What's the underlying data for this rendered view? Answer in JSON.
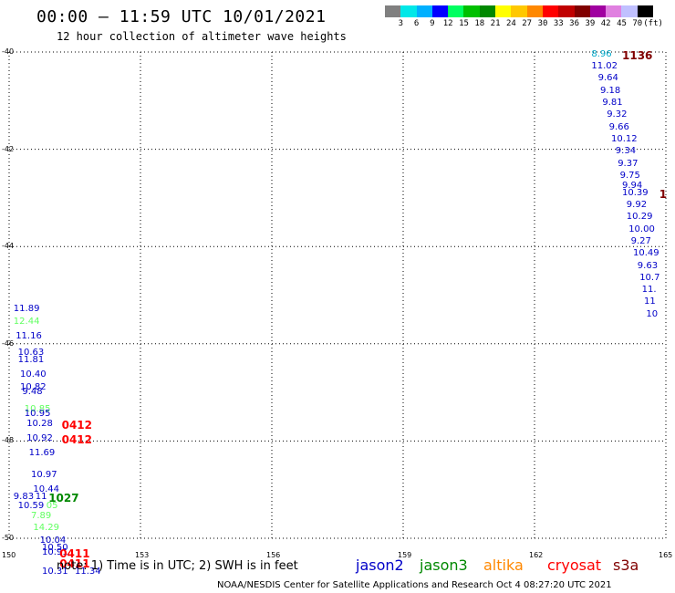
{
  "header": {
    "title": "00:00 – 11:59 UTC 10/01/2021",
    "subtitle": "12 hour collection of altimeter wave heights"
  },
  "legend": {
    "colors": [
      "#808080",
      "#00e8e8",
      "#00b0ff",
      "#0000ff",
      "#00ff60",
      "#00c000",
      "#008800",
      "#ffff00",
      "#ffc800",
      "#ff8800",
      "#ff0000",
      "#c00000",
      "#800000",
      "#a000a0",
      "#e080e0",
      "#c0c0ff",
      "#000000"
    ],
    "labels": [
      "3",
      "6",
      "9",
      "12",
      "15",
      "18",
      "21",
      "24",
      "27",
      "30",
      "33",
      "36",
      "39",
      "42",
      "45",
      "70",
      "(ft)"
    ]
  },
  "axes": {
    "lon_labels": [
      "150",
      "153",
      "156",
      "159",
      "162",
      "165"
    ],
    "lat_labels": [
      "-40",
      "-42",
      "-44",
      "-46",
      "-48",
      "-50"
    ]
  },
  "chart_data": {
    "type": "scatter",
    "xlim": [
      150,
      165
    ],
    "ylim": [
      -50,
      -40
    ],
    "grid": true,
    "points": [
      {
        "lon": 163.3,
        "lat": -40.05,
        "text": "8.96",
        "color": "#00a8c8"
      },
      {
        "lon": 164.0,
        "lat": -40.05,
        "text": "1136",
        "color": "#800000",
        "big": true
      },
      {
        "lon": 163.3,
        "lat": -40.3,
        "text": "11.02",
        "color": "#0000c8"
      },
      {
        "lon": 163.45,
        "lat": -40.55,
        "text": "9.64",
        "color": "#0000c8"
      },
      {
        "lon": 163.5,
        "lat": -40.8,
        "text": "9.18",
        "color": "#0000c8"
      },
      {
        "lon": 163.55,
        "lat": -41.05,
        "text": "9.81",
        "color": "#0000c8"
      },
      {
        "lon": 163.65,
        "lat": -41.3,
        "text": "9.32",
        "color": "#0000c8"
      },
      {
        "lon": 163.7,
        "lat": -41.55,
        "text": "9.66",
        "color": "#0000c8"
      },
      {
        "lon": 163.75,
        "lat": -41.8,
        "text": "10.12",
        "color": "#0000c8"
      },
      {
        "lon": 163.85,
        "lat": -42.05,
        "text": "9.34",
        "color": "#0000c8"
      },
      {
        "lon": 163.9,
        "lat": -42.3,
        "text": "9.37",
        "color": "#0000c8"
      },
      {
        "lon": 163.95,
        "lat": -42.55,
        "text": "9.75",
        "color": "#0000c8"
      },
      {
        "lon": 164.0,
        "lat": -42.75,
        "text": "9.94",
        "color": "#0000c8"
      },
      {
        "lon": 164.0,
        "lat": -42.9,
        "text": "10.39",
        "color": "#0000c8"
      },
      {
        "lon": 164.85,
        "lat": -42.9,
        "text": "1",
        "color": "#800000",
        "big": true
      },
      {
        "lon": 164.1,
        "lat": -43.15,
        "text": "9.92",
        "color": "#0000c8"
      },
      {
        "lon": 164.1,
        "lat": -43.4,
        "text": "10.29",
        "color": "#0000c8"
      },
      {
        "lon": 164.15,
        "lat": -43.65,
        "text": "10.00",
        "color": "#0000c8"
      },
      {
        "lon": 164.2,
        "lat": -43.9,
        "text": "9.27",
        "color": "#0000c8"
      },
      {
        "lon": 164.25,
        "lat": -44.15,
        "text": "10.49",
        "color": "#0000c8"
      },
      {
        "lon": 164.35,
        "lat": -44.4,
        "text": "9.63",
        "color": "#0000c8"
      },
      {
        "lon": 164.4,
        "lat": -44.65,
        "text": "10.7",
        "color": "#0000c8"
      },
      {
        "lon": 164.45,
        "lat": -44.9,
        "text": "11.",
        "color": "#0000c8"
      },
      {
        "lon": 164.5,
        "lat": -45.15,
        "text": "11",
        "color": "#0000c8"
      },
      {
        "lon": 164.55,
        "lat": -45.4,
        "text": "10",
        "color": "#0000c8"
      },
      {
        "lon": 150.1,
        "lat": -45.3,
        "text": "11.89",
        "color": "#0000c8"
      },
      {
        "lon": 150.1,
        "lat": -45.55,
        "text": "12.44",
        "color": "#60ff60"
      },
      {
        "lon": 150.15,
        "lat": -45.85,
        "text": "11.16",
        "color": "#0000c8"
      },
      {
        "lon": 150.2,
        "lat": -46.2,
        "text": "10.63",
        "color": "#0000c8"
      },
      {
        "lon": 150.2,
        "lat": -46.35,
        "text": "11.81",
        "color": "#0000c8"
      },
      {
        "lon": 150.25,
        "lat": -46.65,
        "text": "10.40",
        "color": "#0000c8"
      },
      {
        "lon": 150.25,
        "lat": -46.9,
        "text": "10.82",
        "color": "#0000c8"
      },
      {
        "lon": 150.3,
        "lat": -47.0,
        "text": "9.48",
        "color": "#0000c8"
      },
      {
        "lon": 150.35,
        "lat": -47.35,
        "text": "10.85",
        "color": "#60ff60"
      },
      {
        "lon": 150.35,
        "lat": -47.45,
        "text": "10.95",
        "color": "#0000c8"
      },
      {
        "lon": 150.4,
        "lat": -47.65,
        "text": "10.28",
        "color": "#0000c8"
      },
      {
        "lon": 151.2,
        "lat": -47.65,
        "text": "0412",
        "color": "#ff0000",
        "big": true
      },
      {
        "lon": 150.4,
        "lat": -47.95,
        "text": "10.92",
        "color": "#0000c8"
      },
      {
        "lon": 151.2,
        "lat": -47.95,
        "text": "0412",
        "color": "#ff0000",
        "big": true
      },
      {
        "lon": 150.45,
        "lat": -48.25,
        "text": "11.69",
        "color": "#0000c8"
      },
      {
        "lon": 150.5,
        "lat": -48.7,
        "text": "10.97",
        "color": "#0000c8"
      },
      {
        "lon": 150.55,
        "lat": -49.0,
        "text": "10.44",
        "color": "#0000c8"
      },
      {
        "lon": 150.1,
        "lat": -49.15,
        "text": "9.83",
        "color": "#0000c8"
      },
      {
        "lon": 150.6,
        "lat": -49.15,
        "text": "11",
        "color": "#0000c8"
      },
      {
        "lon": 150.9,
        "lat": -49.15,
        "text": "1027",
        "color": "#008800",
        "big": true
      },
      {
        "lon": 150.2,
        "lat": -49.35,
        "text": "10.59",
        "color": "#0000c8"
      },
      {
        "lon": 150.85,
        "lat": -49.35,
        "text": "05",
        "color": "#60ff60"
      },
      {
        "lon": 150.5,
        "lat": -49.55,
        "text": "7.89",
        "color": "#60ff60"
      },
      {
        "lon": 150.55,
        "lat": -49.8,
        "text": "14.29",
        "color": "#60ff60"
      },
      {
        "lon": 150.7,
        "lat": -50.05,
        "text": "10.04",
        "color": "#0000c8"
      },
      {
        "lon": 150.75,
        "lat": -50.2,
        "text": "10.50",
        "color": "#0000c8"
      },
      {
        "lon": 150.75,
        "lat": -50.3,
        "text": "10.91",
        "color": "#0000c8"
      },
      {
        "lon": 151.15,
        "lat": -50.3,
        "text": "0411",
        "color": "#ff0000",
        "big": true
      },
      {
        "lon": 151.15,
        "lat": -50.5,
        "text": "0411",
        "color": "#ff0000",
        "big": true
      },
      {
        "lon": 150.75,
        "lat": -50.7,
        "text": "10.31",
        "color": "#0000c8"
      },
      {
        "lon": 151.5,
        "lat": -50.7,
        "text": "11.34",
        "color": "#0000c8"
      }
    ]
  },
  "footer": {
    "note": "note:  1) Time is in UTC;  2) SWH is in feet",
    "credit": "NOAA/NESDIS Center for Satellite Applications and Research    Oct  4 08:27:20 UTC 2021",
    "satellites": [
      {
        "name": "jason2",
        "color": "#0000c8"
      },
      {
        "name": "jason3",
        "color": "#008800"
      },
      {
        "name": "altika",
        "color": "#ff8800"
      },
      {
        "name": "cryosat",
        "color": "#ff0000"
      },
      {
        "name": "s3a",
        "color": "#800000"
      }
    ]
  }
}
